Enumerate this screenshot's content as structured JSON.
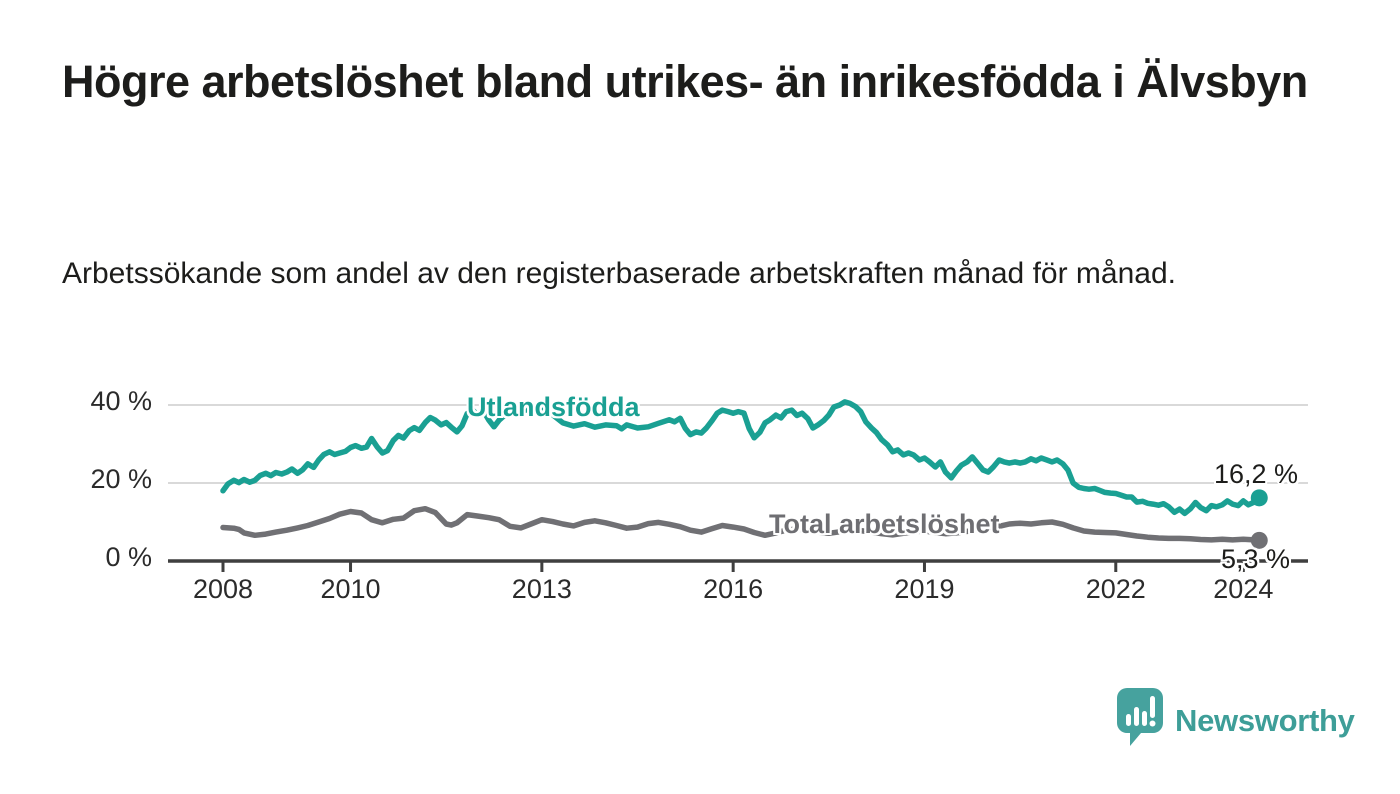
{
  "header": {
    "title": "Högre arbetslöshet bland utrikes- än inrikesfödda i Älvsbyn",
    "subtitle": "Arbetssökande som andel av den registerbaserade arbetskraften månad för månad."
  },
  "chart_data": {
    "type": "line",
    "unit": "%",
    "grid": "horizontal",
    "x_axis": {
      "ticks": [
        2008,
        2010,
        2013,
        2016,
        2019,
        2022,
        2024
      ],
      "tick_labels": [
        "2008",
        "2010",
        "2013",
        "2016",
        "2019",
        "2022",
        "2024"
      ],
      "range": [
        2007.15,
        2025.0
      ]
    },
    "y_axis": {
      "ticks": [
        0,
        20,
        40
      ],
      "tick_labels": [
        "0 %",
        "20 %",
        "40 %"
      ],
      "range": [
        0,
        44
      ]
    },
    "series": [
      {
        "name": "Utlandsfödda",
        "color": "#1aa093",
        "end_label": "16,2 %",
        "end_value": 16.2,
        "points": [
          [
            2008.0,
            18.0
          ],
          [
            2008.08,
            19.8
          ],
          [
            2008.17,
            20.7
          ],
          [
            2008.25,
            20.1
          ],
          [
            2008.33,
            20.9
          ],
          [
            2008.42,
            20.2
          ],
          [
            2008.5,
            20.7
          ],
          [
            2008.58,
            21.9
          ],
          [
            2008.67,
            22.5
          ],
          [
            2008.75,
            21.9
          ],
          [
            2008.83,
            22.7
          ],
          [
            2008.92,
            22.3
          ],
          [
            2009.0,
            22.8
          ],
          [
            2009.08,
            23.6
          ],
          [
            2009.17,
            22.5
          ],
          [
            2009.25,
            23.4
          ],
          [
            2009.33,
            24.9
          ],
          [
            2009.42,
            24.0
          ],
          [
            2009.5,
            25.9
          ],
          [
            2009.58,
            27.3
          ],
          [
            2009.67,
            28.0
          ],
          [
            2009.75,
            27.3
          ],
          [
            2009.83,
            27.7
          ],
          [
            2009.92,
            28.1
          ],
          [
            2010.0,
            29.1
          ],
          [
            2010.08,
            29.6
          ],
          [
            2010.17,
            28.9
          ],
          [
            2010.25,
            29.2
          ],
          [
            2010.33,
            31.4
          ],
          [
            2010.42,
            29.2
          ],
          [
            2010.5,
            27.7
          ],
          [
            2010.58,
            28.3
          ],
          [
            2010.67,
            30.9
          ],
          [
            2010.75,
            32.2
          ],
          [
            2010.83,
            31.5
          ],
          [
            2010.92,
            33.4
          ],
          [
            2011.0,
            34.2
          ],
          [
            2011.08,
            33.5
          ],
          [
            2011.17,
            35.5
          ],
          [
            2011.25,
            36.8
          ],
          [
            2011.33,
            36.1
          ],
          [
            2011.42,
            34.9
          ],
          [
            2011.5,
            35.5
          ],
          [
            2011.58,
            34.3
          ],
          [
            2011.67,
            33.1
          ],
          [
            2011.75,
            34.7
          ],
          [
            2011.83,
            37.8
          ],
          [
            2011.92,
            38.6
          ],
          [
            2012.0,
            37.4
          ],
          [
            2012.08,
            38.6
          ],
          [
            2012.17,
            36.1
          ],
          [
            2012.25,
            34.4
          ],
          [
            2012.33,
            36.1
          ],
          [
            2012.42,
            37.4
          ],
          [
            2012.5,
            39.1
          ],
          [
            2012.58,
            38.2
          ],
          [
            2012.67,
            39.4
          ],
          [
            2012.75,
            38.7
          ],
          [
            2012.83,
            39.4
          ],
          [
            2012.92,
            39.0
          ],
          [
            2013.0,
            39.5
          ],
          [
            2013.17,
            37.5
          ],
          [
            2013.33,
            35.4
          ],
          [
            2013.5,
            34.6
          ],
          [
            2013.67,
            35.2
          ],
          [
            2013.83,
            34.3
          ],
          [
            2014.0,
            34.9
          ],
          [
            2014.17,
            34.7
          ],
          [
            2014.25,
            33.9
          ],
          [
            2014.33,
            34.9
          ],
          [
            2014.5,
            34.1
          ],
          [
            2014.67,
            34.4
          ],
          [
            2014.83,
            35.3
          ],
          [
            2015.0,
            36.2
          ],
          [
            2015.08,
            35.7
          ],
          [
            2015.17,
            36.6
          ],
          [
            2015.25,
            34.0
          ],
          [
            2015.33,
            32.4
          ],
          [
            2015.42,
            33.1
          ],
          [
            2015.5,
            32.8
          ],
          [
            2015.58,
            34.1
          ],
          [
            2015.67,
            36.0
          ],
          [
            2015.75,
            37.9
          ],
          [
            2015.83,
            38.7
          ],
          [
            2015.92,
            38.3
          ],
          [
            2016.0,
            37.9
          ],
          [
            2016.08,
            38.3
          ],
          [
            2016.17,
            37.9
          ],
          [
            2016.25,
            34.0
          ],
          [
            2016.33,
            31.6
          ],
          [
            2016.42,
            33.0
          ],
          [
            2016.5,
            35.4
          ],
          [
            2016.58,
            36.2
          ],
          [
            2016.67,
            37.4
          ],
          [
            2016.75,
            36.7
          ],
          [
            2016.83,
            38.3
          ],
          [
            2016.92,
            38.7
          ],
          [
            2017.0,
            37.3
          ],
          [
            2017.08,
            37.9
          ],
          [
            2017.17,
            36.5
          ],
          [
            2017.25,
            34.1
          ],
          [
            2017.33,
            34.9
          ],
          [
            2017.42,
            36.0
          ],
          [
            2017.5,
            37.4
          ],
          [
            2017.58,
            39.5
          ],
          [
            2017.67,
            40.0
          ],
          [
            2017.75,
            40.8
          ],
          [
            2017.83,
            40.4
          ],
          [
            2017.92,
            39.6
          ],
          [
            2018.0,
            38.3
          ],
          [
            2018.08,
            35.7
          ],
          [
            2018.17,
            34.1
          ],
          [
            2018.25,
            32.9
          ],
          [
            2018.33,
            31.1
          ],
          [
            2018.42,
            29.8
          ],
          [
            2018.5,
            28.0
          ],
          [
            2018.58,
            28.5
          ],
          [
            2018.67,
            27.2
          ],
          [
            2018.75,
            27.7
          ],
          [
            2018.83,
            27.2
          ],
          [
            2018.92,
            25.9
          ],
          [
            2019.0,
            26.4
          ],
          [
            2019.08,
            25.4
          ],
          [
            2019.17,
            24.1
          ],
          [
            2019.25,
            25.4
          ],
          [
            2019.33,
            22.8
          ],
          [
            2019.42,
            21.3
          ],
          [
            2019.5,
            23.1
          ],
          [
            2019.58,
            24.6
          ],
          [
            2019.67,
            25.4
          ],
          [
            2019.75,
            26.7
          ],
          [
            2019.83,
            25.1
          ],
          [
            2019.92,
            23.3
          ],
          [
            2020.0,
            22.8
          ],
          [
            2020.08,
            24.1
          ],
          [
            2020.17,
            25.9
          ],
          [
            2020.25,
            25.4
          ],
          [
            2020.33,
            25.1
          ],
          [
            2020.42,
            25.4
          ],
          [
            2020.5,
            25.1
          ],
          [
            2020.58,
            25.4
          ],
          [
            2020.67,
            26.2
          ],
          [
            2020.75,
            25.7
          ],
          [
            2020.83,
            26.4
          ],
          [
            2020.92,
            25.9
          ],
          [
            2021.0,
            25.4
          ],
          [
            2021.08,
            25.9
          ],
          [
            2021.17,
            24.9
          ],
          [
            2021.25,
            23.3
          ],
          [
            2021.33,
            20.0
          ],
          [
            2021.42,
            18.9
          ],
          [
            2021.5,
            18.6
          ],
          [
            2021.58,
            18.4
          ],
          [
            2021.67,
            18.6
          ],
          [
            2021.75,
            18.1
          ],
          [
            2021.83,
            17.6
          ],
          [
            2021.92,
            17.4
          ],
          [
            2022.0,
            17.3
          ],
          [
            2022.08,
            16.9
          ],
          [
            2022.17,
            16.4
          ],
          [
            2022.25,
            16.4
          ],
          [
            2022.33,
            15.1
          ],
          [
            2022.42,
            15.3
          ],
          [
            2022.5,
            14.8
          ],
          [
            2022.58,
            14.6
          ],
          [
            2022.67,
            14.3
          ],
          [
            2022.75,
            14.7
          ],
          [
            2022.83,
            13.9
          ],
          [
            2022.92,
            12.5
          ],
          [
            2023.0,
            13.3
          ],
          [
            2023.08,
            12.2
          ],
          [
            2023.17,
            13.4
          ],
          [
            2023.25,
            15.0
          ],
          [
            2023.33,
            13.7
          ],
          [
            2023.42,
            12.9
          ],
          [
            2023.5,
            14.2
          ],
          [
            2023.58,
            13.9
          ],
          [
            2023.67,
            14.4
          ],
          [
            2023.75,
            15.4
          ],
          [
            2023.83,
            14.6
          ],
          [
            2023.92,
            14.2
          ],
          [
            2024.0,
            15.4
          ],
          [
            2024.08,
            14.4
          ],
          [
            2024.17,
            15.1
          ],
          [
            2024.25,
            16.2
          ]
        ]
      },
      {
        "name": "Total arbetslöshet",
        "color": "#707074",
        "end_label": "5,3 %",
        "end_value": 5.3,
        "points": [
          [
            2008.0,
            8.6
          ],
          [
            2008.17,
            8.4
          ],
          [
            2008.25,
            8.1
          ],
          [
            2008.33,
            7.2
          ],
          [
            2008.5,
            6.6
          ],
          [
            2008.67,
            6.9
          ],
          [
            2008.83,
            7.4
          ],
          [
            2009.0,
            7.9
          ],
          [
            2009.17,
            8.5
          ],
          [
            2009.33,
            9.1
          ],
          [
            2009.5,
            10.0
          ],
          [
            2009.67,
            10.9
          ],
          [
            2009.83,
            12.0
          ],
          [
            2010.0,
            12.7
          ],
          [
            2010.17,
            12.3
          ],
          [
            2010.33,
            10.6
          ],
          [
            2010.5,
            9.8
          ],
          [
            2010.67,
            10.7
          ],
          [
            2010.83,
            11.0
          ],
          [
            2011.0,
            12.9
          ],
          [
            2011.17,
            13.4
          ],
          [
            2011.33,
            12.4
          ],
          [
            2011.5,
            9.5
          ],
          [
            2011.58,
            9.2
          ],
          [
            2011.67,
            9.8
          ],
          [
            2011.83,
            11.9
          ],
          [
            2012.0,
            11.5
          ],
          [
            2012.17,
            11.1
          ],
          [
            2012.33,
            10.6
          ],
          [
            2012.5,
            8.9
          ],
          [
            2012.67,
            8.5
          ],
          [
            2012.83,
            9.5
          ],
          [
            2013.0,
            10.6
          ],
          [
            2013.17,
            10.1
          ],
          [
            2013.33,
            9.5
          ],
          [
            2013.5,
            9.0
          ],
          [
            2013.67,
            9.9
          ],
          [
            2013.83,
            10.3
          ],
          [
            2014.0,
            9.8
          ],
          [
            2014.17,
            9.1
          ],
          [
            2014.33,
            8.4
          ],
          [
            2014.5,
            8.7
          ],
          [
            2014.67,
            9.6
          ],
          [
            2014.83,
            9.9
          ],
          [
            2015.0,
            9.4
          ],
          [
            2015.17,
            8.8
          ],
          [
            2015.33,
            7.9
          ],
          [
            2015.5,
            7.4
          ],
          [
            2015.67,
            8.3
          ],
          [
            2015.83,
            9.1
          ],
          [
            2016.0,
            8.7
          ],
          [
            2016.17,
            8.2
          ],
          [
            2016.33,
            7.3
          ],
          [
            2016.5,
            6.6
          ],
          [
            2016.67,
            7.2
          ],
          [
            2016.83,
            7.9
          ],
          [
            2017.0,
            8.2
          ],
          [
            2017.17,
            7.8
          ],
          [
            2017.33,
            7.4
          ],
          [
            2017.5,
            7.1
          ],
          [
            2017.67,
            7.5
          ],
          [
            2017.83,
            8.0
          ],
          [
            2018.0,
            7.8
          ],
          [
            2018.17,
            7.4
          ],
          [
            2018.33,
            7.0
          ],
          [
            2018.5,
            6.7
          ],
          [
            2018.67,
            7.1
          ],
          [
            2018.83,
            7.5
          ],
          [
            2019.0,
            7.7
          ],
          [
            2019.17,
            7.3
          ],
          [
            2019.33,
            7.0
          ],
          [
            2019.5,
            7.2
          ],
          [
            2019.67,
            7.6
          ],
          [
            2019.83,
            8.0
          ],
          [
            2020.0,
            8.4
          ],
          [
            2020.17,
            8.9
          ],
          [
            2020.33,
            9.5
          ],
          [
            2020.5,
            9.7
          ],
          [
            2020.67,
            9.5
          ],
          [
            2020.83,
            9.8
          ],
          [
            2021.0,
            10.0
          ],
          [
            2021.17,
            9.4
          ],
          [
            2021.33,
            8.5
          ],
          [
            2021.5,
            7.7
          ],
          [
            2021.67,
            7.4
          ],
          [
            2021.83,
            7.3
          ],
          [
            2022.0,
            7.2
          ],
          [
            2022.17,
            6.8
          ],
          [
            2022.33,
            6.4
          ],
          [
            2022.5,
            6.1
          ],
          [
            2022.67,
            5.9
          ],
          [
            2022.83,
            5.8
          ],
          [
            2023.0,
            5.8
          ],
          [
            2023.17,
            5.7
          ],
          [
            2023.33,
            5.5
          ],
          [
            2023.5,
            5.4
          ],
          [
            2023.67,
            5.6
          ],
          [
            2023.83,
            5.4
          ],
          [
            2024.0,
            5.6
          ],
          [
            2024.17,
            5.4
          ],
          [
            2024.25,
            5.3
          ]
        ]
      }
    ],
    "colors": {
      "gridline": "#d9d9d9",
      "axis": "#3f3f3f",
      "text": "#1d1d1b"
    }
  },
  "footer": {
    "brand": "Newsworthy",
    "logo_color": "#46a29e",
    "brand_text_color": "#3e9e98"
  }
}
